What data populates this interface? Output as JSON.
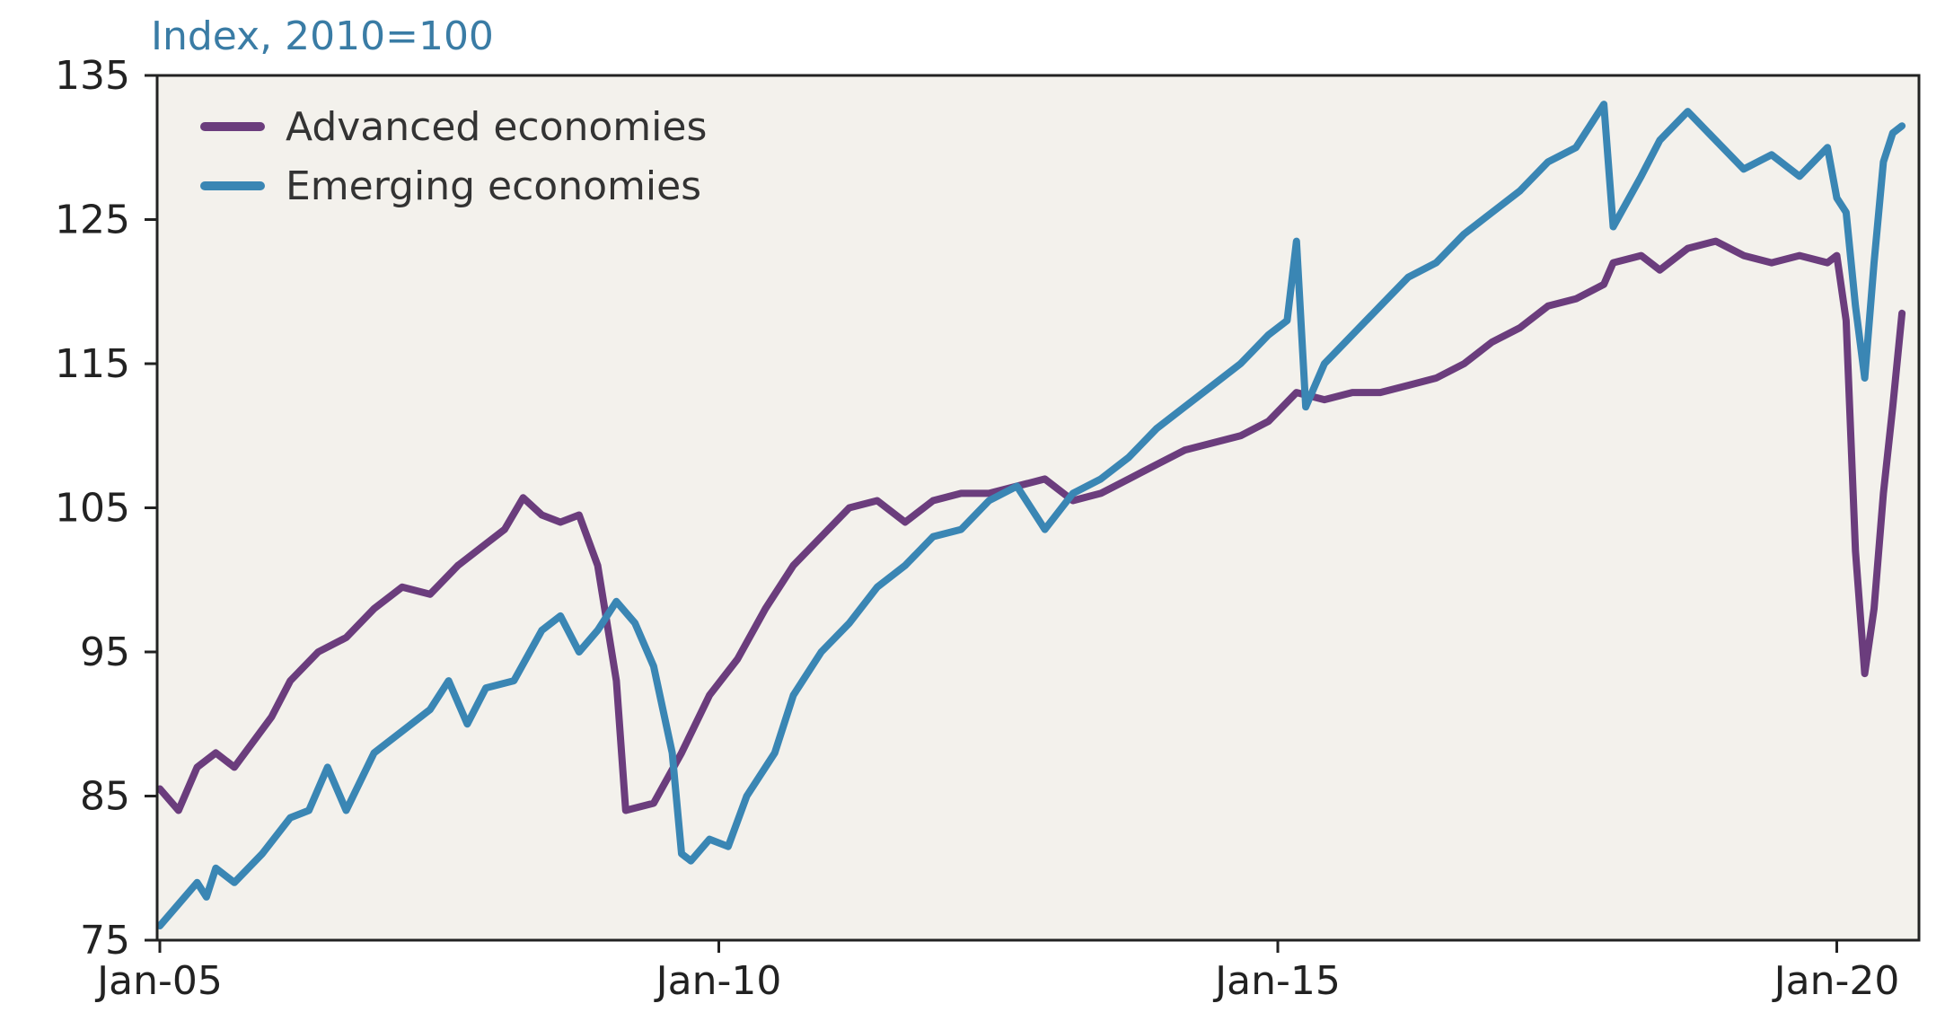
{
  "chart_data": {
    "type": "line",
    "ylabel": "Index, 2010=100",
    "ylim": [
      75,
      135
    ],
    "yticks": [
      "135",
      "125",
      "115",
      "105",
      "95",
      "85",
      "75"
    ],
    "xlim": [
      "2005-01",
      "2020-08"
    ],
    "xticks": [
      {
        "label": "Jan-05",
        "date": "2005-01"
      },
      {
        "label": "Jan-10",
        "date": "2010-01"
      },
      {
        "label": "Jan-15",
        "date": "2015-01"
      },
      {
        "label": "Jan-20",
        "date": "2020-01"
      }
    ],
    "background": "#f3f1ec",
    "legend_position": "top-left",
    "series": [
      {
        "name": "Advanced economies",
        "color": "#6b3d7d",
        "points": [
          [
            "2005-01",
            85.5
          ],
          [
            "2005-03",
            84.0
          ],
          [
            "2005-05",
            87.0
          ],
          [
            "2005-07",
            88.0
          ],
          [
            "2005-09",
            87.0
          ],
          [
            "2006-01",
            90.5
          ],
          [
            "2006-03",
            93.0
          ],
          [
            "2006-06",
            95.0
          ],
          [
            "2006-09",
            96.0
          ],
          [
            "2006-12",
            98.0
          ],
          [
            "2007-03",
            99.5
          ],
          [
            "2007-06",
            99.0
          ],
          [
            "2007-09",
            101.0
          ],
          [
            "2007-12",
            102.5
          ],
          [
            "2008-02",
            103.5
          ],
          [
            "2008-04",
            105.7
          ],
          [
            "2008-06",
            104.5
          ],
          [
            "2008-08",
            104.0
          ],
          [
            "2008-10",
            104.5
          ],
          [
            "2008-12",
            101.0
          ],
          [
            "2009-02",
            93.0
          ],
          [
            "2009-03",
            84.0
          ],
          [
            "2009-06",
            84.5
          ],
          [
            "2009-09",
            88.0
          ],
          [
            "2009-12",
            92.0
          ],
          [
            "2010-03",
            94.5
          ],
          [
            "2010-06",
            98.0
          ],
          [
            "2010-09",
            101.0
          ],
          [
            "2010-12",
            103.0
          ],
          [
            "2011-03",
            105.0
          ],
          [
            "2011-06",
            105.5
          ],
          [
            "2011-09",
            104.0
          ],
          [
            "2011-12",
            105.5
          ],
          [
            "2012-03",
            106.0
          ],
          [
            "2012-06",
            106.0
          ],
          [
            "2012-09",
            106.5
          ],
          [
            "2012-12",
            107.0
          ],
          [
            "2013-03",
            105.5
          ],
          [
            "2013-06",
            106.0
          ],
          [
            "2013-09",
            107.0
          ],
          [
            "2013-12",
            108.0
          ],
          [
            "2014-03",
            109.0
          ],
          [
            "2014-06",
            109.5
          ],
          [
            "2014-09",
            110.0
          ],
          [
            "2014-12",
            111.0
          ],
          [
            "2015-03",
            113.0
          ],
          [
            "2015-06",
            112.5
          ],
          [
            "2015-09",
            113.0
          ],
          [
            "2015-12",
            113.0
          ],
          [
            "2016-03",
            113.5
          ],
          [
            "2016-06",
            114.0
          ],
          [
            "2016-09",
            115.0
          ],
          [
            "2016-12",
            116.5
          ],
          [
            "2017-03",
            117.5
          ],
          [
            "2017-06",
            119.0
          ],
          [
            "2017-09",
            119.5
          ],
          [
            "2017-12",
            120.5
          ],
          [
            "2018-01",
            122.0
          ],
          [
            "2018-04",
            122.5
          ],
          [
            "2018-06",
            121.5
          ],
          [
            "2018-09",
            123.0
          ],
          [
            "2018-12",
            123.5
          ],
          [
            "2019-03",
            122.5
          ],
          [
            "2019-06",
            122.0
          ],
          [
            "2019-09",
            122.5
          ],
          [
            "2019-12",
            122.0
          ],
          [
            "2020-01",
            122.5
          ],
          [
            "2020-02",
            118.0
          ],
          [
            "2020-03",
            102.0
          ],
          [
            "2020-04",
            93.5
          ],
          [
            "2020-05",
            98.0
          ],
          [
            "2020-06",
            106.0
          ],
          [
            "2020-07",
            112.0
          ],
          [
            "2020-08",
            118.5
          ]
        ]
      },
      {
        "name": "Emerging economies",
        "color": "#3a86b4",
        "points": [
          [
            "2005-01",
            76.0
          ],
          [
            "2005-03",
            77.5
          ],
          [
            "2005-05",
            79.0
          ],
          [
            "2005-06",
            78.0
          ],
          [
            "2005-07",
            80.0
          ],
          [
            "2005-09",
            79.0
          ],
          [
            "2005-12",
            81.0
          ],
          [
            "2006-03",
            83.5
          ],
          [
            "2006-05",
            84.0
          ],
          [
            "2006-07",
            87.0
          ],
          [
            "2006-09",
            84.0
          ],
          [
            "2006-12",
            88.0
          ],
          [
            "2007-03",
            89.5
          ],
          [
            "2007-06",
            91.0
          ],
          [
            "2007-08",
            93.0
          ],
          [
            "2007-10",
            90.0
          ],
          [
            "2007-12",
            92.5
          ],
          [
            "2008-03",
            93.0
          ],
          [
            "2008-06",
            96.5
          ],
          [
            "2008-08",
            97.5
          ],
          [
            "2008-10",
            95.0
          ],
          [
            "2008-12",
            96.5
          ],
          [
            "2009-02",
            98.5
          ],
          [
            "2009-04",
            97.0
          ],
          [
            "2009-06",
            94.0
          ],
          [
            "2009-08",
            88.0
          ],
          [
            "2009-09",
            81.0
          ],
          [
            "2009-10",
            80.5
          ],
          [
            "2009-12",
            82.0
          ],
          [
            "2010-02",
            81.5
          ],
          [
            "2010-04",
            85.0
          ],
          [
            "2010-07",
            88.0
          ],
          [
            "2010-09",
            92.0
          ],
          [
            "2010-12",
            95.0
          ],
          [
            "2011-03",
            97.0
          ],
          [
            "2011-06",
            99.5
          ],
          [
            "2011-09",
            101.0
          ],
          [
            "2011-12",
            103.0
          ],
          [
            "2012-03",
            103.5
          ],
          [
            "2012-06",
            105.5
          ],
          [
            "2012-09",
            106.5
          ],
          [
            "2012-12",
            103.5
          ],
          [
            "2013-03",
            106.0
          ],
          [
            "2013-06",
            107.0
          ],
          [
            "2013-09",
            108.5
          ],
          [
            "2013-12",
            110.5
          ],
          [
            "2014-03",
            112.0
          ],
          [
            "2014-06",
            113.5
          ],
          [
            "2014-09",
            115.0
          ],
          [
            "2014-12",
            117.0
          ],
          [
            "2015-02",
            118.0
          ],
          [
            "2015-03",
            123.5
          ],
          [
            "2015-04",
            112.0
          ],
          [
            "2015-06",
            115.0
          ],
          [
            "2015-09",
            117.0
          ],
          [
            "2015-12",
            119.0
          ],
          [
            "2016-03",
            121.0
          ],
          [
            "2016-06",
            122.0
          ],
          [
            "2016-09",
            124.0
          ],
          [
            "2016-12",
            125.5
          ],
          [
            "2017-03",
            127.0
          ],
          [
            "2017-06",
            129.0
          ],
          [
            "2017-09",
            130.0
          ],
          [
            "2017-12",
            133.0
          ],
          [
            "2018-01",
            124.5
          ],
          [
            "2018-04",
            128.0
          ],
          [
            "2018-06",
            130.5
          ],
          [
            "2018-09",
            132.5
          ],
          [
            "2018-12",
            130.5
          ],
          [
            "2019-03",
            128.5
          ],
          [
            "2019-06",
            129.5
          ],
          [
            "2019-09",
            128.0
          ],
          [
            "2019-12",
            130.0
          ],
          [
            "2020-01",
            126.5
          ],
          [
            "2020-02",
            125.5
          ],
          [
            "2020-03",
            119.0
          ],
          [
            "2020-04",
            114.0
          ],
          [
            "2020-05",
            122.0
          ],
          [
            "2020-06",
            129.0
          ],
          [
            "2020-07",
            131.0
          ],
          [
            "2020-08",
            131.5
          ]
        ]
      }
    ]
  }
}
